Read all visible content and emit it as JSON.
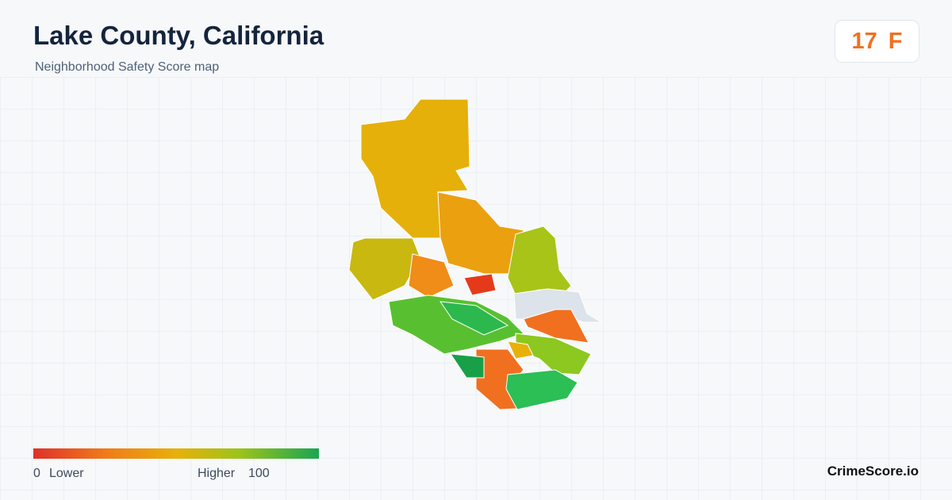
{
  "header": {
    "title": "Lake County, California",
    "subtitle": "Neighborhood Safety Score map"
  },
  "score": {
    "value": 17,
    "grade": "F"
  },
  "legend": {
    "min": 0,
    "min_label": "Lower",
    "max_label": "Higher",
    "max": 100
  },
  "brand": "CrimeScore.io"
}
